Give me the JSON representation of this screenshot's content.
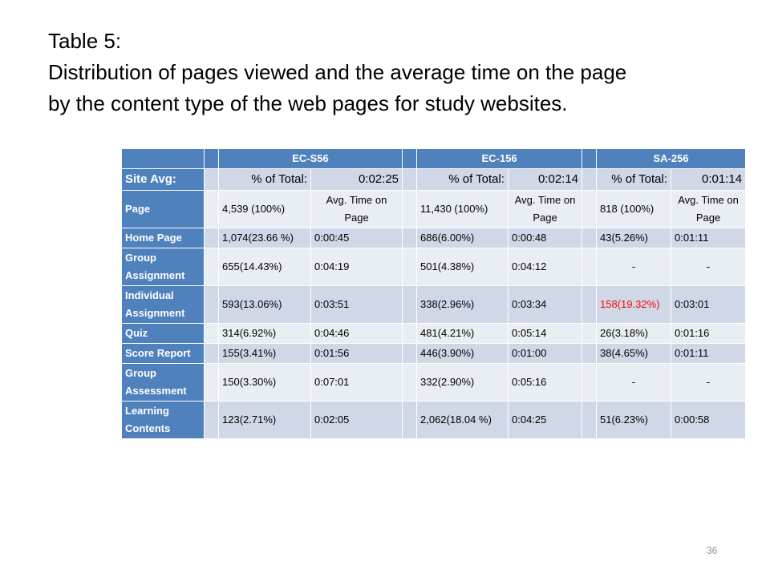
{
  "title": {
    "line1": "Table 5:",
    "line2": "Distribution of pages viewed and the average time on the page",
    "line3": "by the content type of the web pages for study websites."
  },
  "table": {
    "header": [
      "",
      "",
      "EC-S56",
      "",
      "EC-156",
      "",
      "SA-256"
    ],
    "site_avg": {
      "label": "Site Avg:",
      "cells": [
        "",
        "% of Total:",
        "0:02:25",
        "",
        "% of Total:",
        "0:02:14",
        "",
        "% of Total:",
        "0:01:14"
      ]
    },
    "rows": [
      {
        "label": "Page",
        "cells": [
          "",
          "4,539 (100%)",
          "Avg. Time on Page",
          "",
          "11,430 (100%)",
          "Avg. Time on Page",
          "",
          "818 (100%)",
          "Avg. Time on Page"
        ]
      },
      {
        "label": "Home Page",
        "cells": [
          "",
          "1,074(23.66 %)",
          "0:00:45",
          "",
          "686(6.00%)",
          "0:00:48",
          "",
          "43(5.26%)",
          "0:01:11"
        ]
      },
      {
        "label": "Group Assignment",
        "cells": [
          "",
          "655(14.43%)",
          "0:04:19",
          "",
          "501(4.38%)",
          "0:04:12",
          "",
          "-",
          "-"
        ]
      },
      {
        "label": "Individual Assignment",
        "cells": [
          "",
          "593(13.06%)",
          "0:03:51",
          "",
          "338(2.96%)",
          "0:03:34",
          "",
          "158(19.32%)",
          "0:03:01"
        ]
      },
      {
        "label": "Quiz",
        "cells": [
          "",
          "314(6.92%)",
          "0:04:46",
          "",
          "481(4.21%)",
          "0:05:14",
          "",
          "26(3.18%)",
          "0:01:16"
        ]
      },
      {
        "label": "Score Report",
        "cells": [
          "",
          "155(3.41%)",
          "0:01:56",
          "",
          "446(3.90%)",
          "0:01:00",
          "",
          "38(4.65%)",
          "0:01:11"
        ]
      },
      {
        "label": "Group Assessment",
        "cells": [
          "",
          "150(3.30%)",
          "0:07:01",
          "",
          "332(2.90%)",
          "0:05:16",
          "",
          "-",
          "-"
        ]
      },
      {
        "label": "Learning Contents",
        "cells": [
          "",
          "123(2.71%)",
          "0:02:05",
          "",
          "2,062(18.04 %)",
          "0:04:25",
          "",
          "51(6.23%)",
          "0:00:58"
        ]
      }
    ],
    "highlight_color": "#ff0000"
  },
  "page_number": "36"
}
